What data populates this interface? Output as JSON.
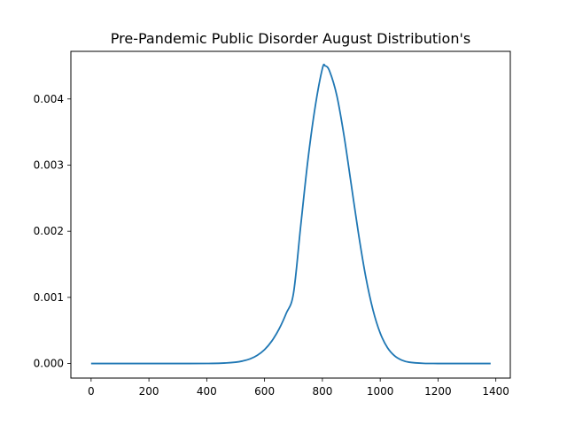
{
  "chart_data": {
    "type": "line",
    "title": "Pre-Pandemic Public Disorder August Distribution's",
    "xlabel": "",
    "ylabel": "",
    "xlim": [
      -70,
      1450
    ],
    "ylim": [
      -0.00022,
      0.00472
    ],
    "xticks": [
      0,
      200,
      400,
      600,
      800,
      1000,
      1200,
      1400
    ],
    "yticks": [
      0.0,
      0.001,
      0.002,
      0.003,
      0.004
    ],
    "ytick_labels": [
      "0.000",
      "0.001",
      "0.002",
      "0.003",
      "0.004"
    ],
    "grid": false,
    "series": [
      {
        "color": "#1f77b4",
        "x": [
          0,
          100,
          200,
          300,
          400,
          450,
          500,
          525,
          550,
          575,
          600,
          625,
          650,
          675,
          700,
          725,
          750,
          775,
          800,
          810,
          825,
          850,
          875,
          900,
          925,
          950,
          975,
          1000,
          1025,
          1050,
          1075,
          1100,
          1150,
          1200,
          1300,
          1382
        ],
        "y": [
          0,
          0,
          0,
          0,
          1e-06,
          5e-06,
          2e-05,
          3.9e-05,
          7e-05,
          0.000125,
          0.00021,
          0.00034,
          0.00052,
          0.00076,
          0.00106,
          0.00208,
          0.00308,
          0.00388,
          0.00446,
          0.0045,
          0.00442,
          0.00405,
          0.00344,
          0.0027,
          0.00196,
          0.00131,
          0.00081,
          0.00046,
          0.00024,
          0.000115,
          5e-05,
          2e-05,
          3e-06,
          3e-07,
          0,
          0
        ]
      }
    ]
  }
}
